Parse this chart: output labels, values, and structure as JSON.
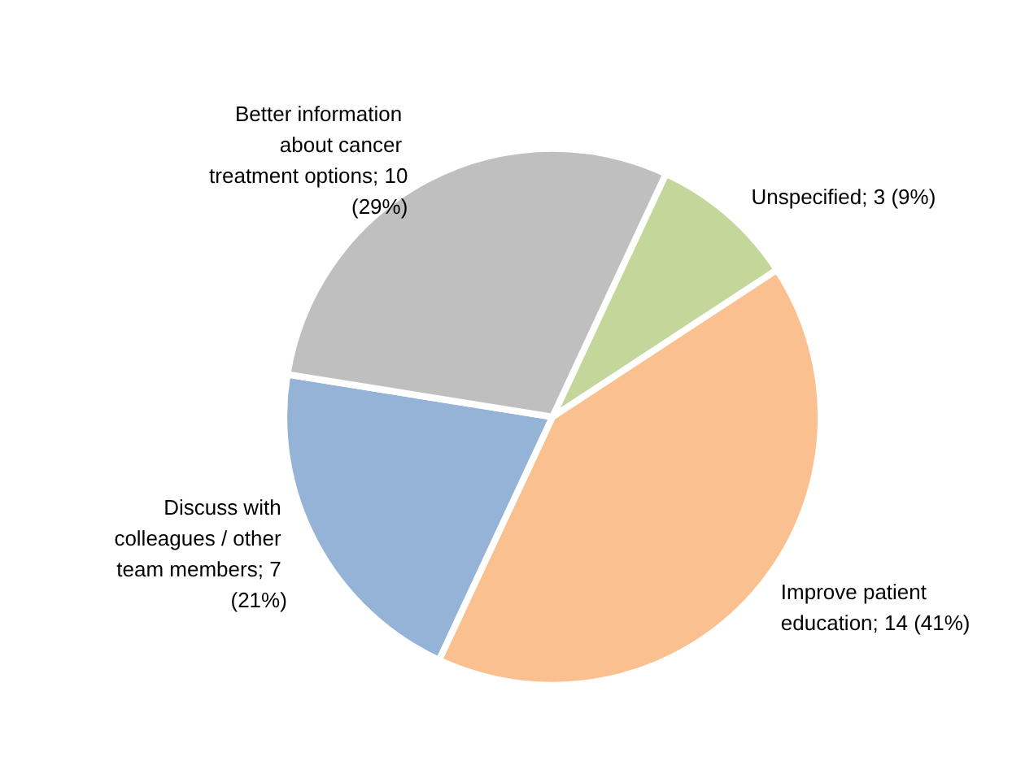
{
  "chart_data": {
    "type": "pie",
    "categories": [
      "Unspecified; 3 (9%)",
      "Improve patient education; 14 (41%)",
      "Discuss with colleagues / other team members; 7 (21%)",
      "Better information about cancer treatment options; 10 (29%)"
    ],
    "values": [
      3,
      14,
      7,
      10
    ],
    "colors": [
      "#c4d79b",
      "#fac090",
      "#95b3d7",
      "#bfbfbf"
    ],
    "legend": false
  }
}
